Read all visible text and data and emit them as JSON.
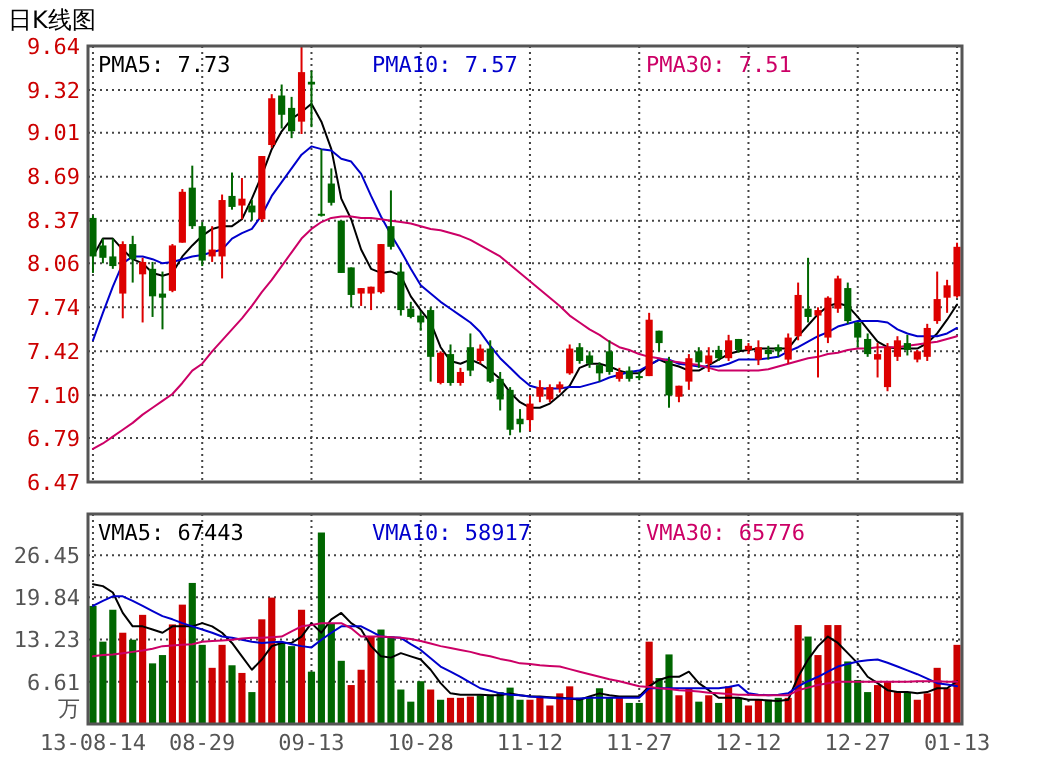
{
  "chart_data": [
    {
      "type": "candlestick",
      "title": "日K线图",
      "categories": [
        null,
        null,
        null,
        null,
        null,
        null,
        null,
        null,
        null,
        null,
        null,
        null,
        null,
        null,
        null,
        null,
        null,
        null,
        null,
        null,
        null,
        null,
        null,
        null,
        null,
        null,
        null,
        null,
        null,
        null,
        null,
        null,
        null,
        null,
        null,
        null,
        null,
        null,
        null,
        null,
        null,
        null,
        null,
        null,
        null,
        null,
        null,
        null,
        null,
        null,
        null,
        null,
        null,
        null,
        null,
        null,
        null,
        null,
        null,
        null,
        null,
        null,
        null,
        null,
        null,
        null,
        null,
        null,
        null,
        null,
        null,
        null,
        null,
        null,
        null,
        null,
        null,
        null,
        null,
        null,
        null,
        null,
        null,
        null,
        null,
        null,
        null,
        null
      ],
      "ohlc": [
        [
          8.39,
          8.41,
          7.99,
          8.11
        ],
        [
          8.19,
          8.24,
          8.06,
          8.1
        ],
        [
          8.11,
          8.24,
          8.02,
          8.04
        ],
        [
          7.84,
          8.22,
          7.66,
          8.2
        ],
        [
          8.2,
          8.26,
          7.92,
          8.09
        ],
        [
          7.98,
          8.1,
          7.63,
          8.07
        ],
        [
          8.02,
          8.07,
          7.67,
          7.82
        ],
        [
          7.84,
          8.0,
          7.58,
          7.81
        ],
        [
          7.86,
          8.2,
          7.85,
          8.19
        ],
        [
          8.21,
          8.6,
          8.21,
          8.58
        ],
        [
          8.61,
          8.77,
          8.31,
          8.33
        ],
        [
          8.33,
          8.36,
          8.04,
          8.08
        ],
        [
          8.11,
          8.33,
          8.07,
          8.16
        ],
        [
          8.11,
          8.56,
          7.95,
          8.52
        ],
        [
          8.55,
          8.72,
          8.45,
          8.47
        ],
        [
          8.48,
          8.68,
          8.38,
          8.53
        ],
        [
          8.48,
          8.52,
          8.37,
          8.43
        ],
        [
          8.38,
          8.84,
          8.36,
          8.84
        ],
        [
          8.92,
          9.29,
          8.9,
          9.26
        ],
        [
          9.28,
          9.36,
          9.04,
          9.14
        ],
        [
          9.19,
          9.27,
          8.97,
          9.02
        ],
        [
          9.09,
          9.64,
          9.0,
          9.45
        ],
        [
          9.38,
          9.46,
          9.05,
          9.36
        ],
        [
          8.42,
          8.89,
          8.4,
          8.41
        ],
        [
          8.64,
          8.75,
          8.48,
          8.5
        ],
        [
          8.37,
          8.37,
          7.99,
          7.99
        ],
        [
          8.03,
          8.03,
          7.74,
          7.83
        ],
        [
          7.84,
          7.88,
          7.75,
          7.88
        ],
        [
          7.84,
          7.89,
          7.72,
          7.89
        ],
        [
          7.85,
          8.2,
          7.84,
          8.2
        ],
        [
          8.33,
          8.59,
          8.16,
          8.18
        ],
        [
          8.0,
          8.06,
          7.68,
          7.72
        ],
        [
          7.73,
          7.78,
          7.66,
          7.67
        ],
        [
          7.68,
          7.71,
          7.57,
          7.63
        ],
        [
          7.72,
          7.74,
          7.2,
          7.38
        ],
        [
          7.19,
          7.42,
          7.18,
          7.41
        ],
        [
          7.4,
          7.47,
          7.17,
          7.19
        ],
        [
          7.19,
          7.3,
          7.17,
          7.27
        ],
        [
          7.45,
          7.55,
          7.24,
          7.28
        ],
        [
          7.35,
          7.47,
          7.33,
          7.44
        ],
        [
          7.44,
          7.5,
          7.19,
          7.2
        ],
        [
          7.22,
          7.27,
          6.99,
          7.07
        ],
        [
          7.14,
          7.16,
          6.81,
          6.85
        ],
        [
          6.93,
          7.0,
          6.83,
          6.89
        ],
        [
          6.92,
          7.1,
          6.84,
          7.04
        ],
        [
          7.09,
          7.21,
          7.05,
          7.16
        ],
        [
          7.07,
          7.18,
          7.05,
          7.16
        ],
        [
          7.15,
          7.2,
          7.12,
          7.18
        ],
        [
          7.26,
          7.47,
          7.25,
          7.44
        ],
        [
          7.45,
          7.48,
          7.33,
          7.35
        ],
        [
          7.39,
          7.42,
          7.3,
          7.33
        ],
        [
          7.32,
          7.34,
          7.2,
          7.26
        ],
        [
          7.42,
          7.5,
          7.25,
          7.27
        ],
        [
          7.22,
          7.3,
          7.2,
          7.27
        ],
        [
          7.28,
          7.31,
          7.2,
          7.22
        ],
        [
          7.24,
          7.27,
          7.21,
          7.23
        ],
        [
          7.24,
          7.7,
          7.24,
          7.65
        ],
        [
          7.57,
          7.57,
          7.42,
          7.48
        ],
        [
          7.35,
          7.38,
          7.01,
          7.1
        ],
        [
          7.09,
          7.17,
          7.05,
          7.17
        ],
        [
          7.2,
          7.4,
          7.14,
          7.37
        ],
        [
          7.42,
          7.45,
          7.3,
          7.34
        ],
        [
          7.33,
          7.45,
          7.27,
          7.39
        ],
        [
          7.43,
          7.46,
          7.35,
          7.37
        ],
        [
          7.37,
          7.54,
          7.35,
          7.5
        ],
        [
          7.51,
          7.51,
          7.41,
          7.43
        ],
        [
          7.43,
          7.48,
          7.4,
          7.46
        ],
        [
          7.36,
          7.5,
          7.32,
          7.45
        ],
        [
          7.43,
          7.46,
          7.36,
          7.4
        ],
        [
          7.45,
          7.47,
          7.38,
          7.42
        ],
        [
          7.36,
          7.55,
          7.33,
          7.52
        ],
        [
          7.53,
          7.92,
          7.5,
          7.83
        ],
        [
          7.73,
          8.1,
          7.63,
          7.67
        ],
        [
          7.68,
          7.74,
          7.23,
          7.72
        ],
        [
          7.52,
          7.82,
          7.48,
          7.81
        ],
        [
          7.73,
          7.97,
          7.7,
          7.95
        ],
        [
          7.88,
          7.92,
          7.62,
          7.64
        ],
        [
          7.63,
          7.63,
          7.45,
          7.52
        ],
        [
          7.51,
          7.55,
          7.38,
          7.4
        ],
        [
          7.36,
          7.48,
          7.23,
          7.4
        ],
        [
          7.16,
          7.48,
          7.13,
          7.45
        ],
        [
          7.38,
          7.53,
          7.35,
          7.5
        ],
        [
          7.48,
          7.54,
          7.39,
          7.43
        ],
        [
          7.36,
          7.43,
          7.34,
          7.42
        ],
        [
          7.38,
          7.62,
          7.35,
          7.59
        ],
        [
          7.64,
          8.0,
          7.62,
          7.8
        ],
        [
          7.81,
          7.94,
          7.7,
          7.9
        ],
        [
          7.82,
          8.21,
          7.81,
          8.18
        ]
      ],
      "series": [
        {
          "name": "PMA5: 7.73",
          "type": "line",
          "color": "#000000",
          "values": [
            8.11,
            8.24,
            8.24,
            8.16,
            8.09,
            8.06,
            7.99,
            7.97,
            7.99,
            8.11,
            8.19,
            8.26,
            8.31,
            8.33,
            8.33,
            8.38,
            8.53,
            8.7,
            8.89,
            9.02,
            9.11,
            9.16,
            9.22,
            9.09,
            8.89,
            8.53,
            8.38,
            8.16,
            8.02,
            7.99,
            8.0,
            7.97,
            7.82,
            7.72,
            7.63,
            7.45,
            7.35,
            7.33,
            7.36,
            7.33,
            7.28,
            7.22,
            7.12,
            7.05,
            7.01,
            7.01,
            7.04,
            7.1,
            7.17,
            7.3,
            7.33,
            7.33,
            7.31,
            7.28,
            7.26,
            7.26,
            7.32,
            7.36,
            7.33,
            7.31,
            7.28,
            7.28,
            7.32,
            7.36,
            7.4,
            7.42,
            7.43,
            7.44,
            7.44,
            7.44,
            7.44,
            7.53,
            7.61,
            7.69,
            7.75,
            7.77,
            7.75,
            7.67,
            7.58,
            7.49,
            7.45,
            7.44,
            7.44,
            7.44,
            7.48,
            7.55,
            7.65,
            7.76
          ]
        },
        {
          "name": "PMA10: 7.57",
          "type": "line",
          "color": "#0000cc",
          "values": [
            7.5,
            7.7,
            7.89,
            8.06,
            8.11,
            8.11,
            8.09,
            8.06,
            8.07,
            8.09,
            8.11,
            8.12,
            8.14,
            8.16,
            8.24,
            8.28,
            8.31,
            8.41,
            8.55,
            8.65,
            8.75,
            8.85,
            8.91,
            8.89,
            8.88,
            8.82,
            8.8,
            8.71,
            8.55,
            8.4,
            8.27,
            8.15,
            8.02,
            7.9,
            7.84,
            7.78,
            7.73,
            7.68,
            7.63,
            7.56,
            7.46,
            7.37,
            7.3,
            7.23,
            7.17,
            7.15,
            7.15,
            7.15,
            7.16,
            7.16,
            7.18,
            7.2,
            7.23,
            7.25,
            7.27,
            7.28,
            7.32,
            7.36,
            7.36,
            7.33,
            7.32,
            7.31,
            7.31,
            7.31,
            7.33,
            7.36,
            7.36,
            7.36,
            7.37,
            7.38,
            7.42,
            7.45,
            7.49,
            7.53,
            7.56,
            7.6,
            7.62,
            7.64,
            7.64,
            7.64,
            7.63,
            7.58,
            7.55,
            7.53,
            7.53,
            7.53,
            7.55,
            7.59
          ]
        },
        {
          "name": "PMA30: 7.51",
          "type": "line",
          "color": "#cc0066",
          "values": [
            6.71,
            6.75,
            6.8,
            6.85,
            6.9,
            6.96,
            7.01,
            7.06,
            7.11,
            7.19,
            7.28,
            7.33,
            7.42,
            7.5,
            7.58,
            7.66,
            7.75,
            7.85,
            7.94,
            8.04,
            8.14,
            8.24,
            8.31,
            8.36,
            8.39,
            8.4,
            8.4,
            8.39,
            8.39,
            8.38,
            8.37,
            8.36,
            8.35,
            8.33,
            8.31,
            8.3,
            8.28,
            8.26,
            8.23,
            8.19,
            8.15,
            8.11,
            8.05,
            7.99,
            7.93,
            7.87,
            7.81,
            7.75,
            7.68,
            7.63,
            7.58,
            7.54,
            7.49,
            7.45,
            7.43,
            7.4,
            7.38,
            7.37,
            7.35,
            7.34,
            7.33,
            7.32,
            7.3,
            7.28,
            7.28,
            7.28,
            7.28,
            7.28,
            7.29,
            7.31,
            7.33,
            7.35,
            7.37,
            7.38,
            7.4,
            7.41,
            7.43,
            7.44,
            7.44,
            7.45,
            7.45,
            7.45,
            7.46,
            7.47,
            7.48,
            7.49,
            7.51,
            7.53
          ]
        }
      ],
      "ylim": [
        6.47,
        9.64
      ],
      "yticks": [
        6.47,
        6.79,
        {
          "value": 7.1,
          "label": "7.10"
        },
        7.42,
        7.74,
        8.06,
        8.37,
        8.69,
        9.01,
        9.32,
        9.64
      ],
      "grid": true,
      "legend": "top",
      "tick_labels": "y"
    },
    {
      "type": "bar",
      "ylabel": "万",
      "categories": [
        "13-08-14",
        null,
        null,
        null,
        null,
        null,
        null,
        null,
        null,
        null,
        null,
        "08-29",
        null,
        null,
        null,
        null,
        null,
        null,
        null,
        null,
        null,
        null,
        "09-13",
        null,
        null,
        null,
        null,
        null,
        null,
        null,
        null,
        null,
        null,
        "10-28",
        null,
        null,
        null,
        null,
        null,
        null,
        null,
        null,
        null,
        null,
        "11-12",
        null,
        null,
        null,
        null,
        null,
        null,
        null,
        null,
        null,
        null,
        "11-27",
        null,
        null,
        null,
        null,
        null,
        null,
        null,
        null,
        null,
        null,
        "12-12",
        null,
        null,
        null,
        null,
        null,
        null,
        null,
        null,
        null,
        null,
        "12-27",
        null,
        null,
        null,
        null,
        null,
        null,
        null,
        null,
        null,
        "01-13"
      ],
      "series": [
        {
          "values": [
            18.5,
            12.9,
            17.9,
            14.3,
            13.2,
            17.1,
            9.5,
            10.8,
            15.6,
            18.7,
            22.1,
            12.4,
            8.8,
            12.4,
            9.2,
            8.0,
            5.0,
            16.4,
            19.8,
            12.7,
            12.2,
            17.9,
            8.2,
            30.0,
            15.8,
            9.9,
            6.1,
            8.5,
            13.7,
            14.8,
            13.7,
            5.4,
            3.5,
            6.7,
            5.4,
            3.8,
            4.1,
            4.1,
            4.3,
            4.5,
            4.5,
            5.0,
            5.7,
            3.8,
            3.8,
            4.1,
            2.9,
            4.8,
            5.9,
            4.1,
            4.1,
            5.6,
            4.1,
            4.1,
            3.3,
            3.3,
            12.9,
            7.2,
            10.9,
            4.5,
            5.6,
            3.5,
            4.5,
            3.3,
            5.9,
            4.1,
            2.9,
            3.8,
            3.8,
            4.1,
            4.1,
            15.5,
            13.7,
            10.8,
            15.5,
            15.5,
            9.8,
            6.9,
            5.0,
            6.1,
            6.6,
            5.0,
            5.0,
            3.8,
            4.8,
            8.8,
            5.6,
            12.4
          ],
          "colors": [
            "#006600",
            "#006600",
            "#006600",
            "#cc0000",
            "#006600",
            "#cc0000",
            "#006600",
            "#006600",
            "#cc0000",
            "#cc0000",
            "#006600",
            "#006600",
            "#cc0000",
            "#cc0000",
            "#006600",
            "#cc0000",
            "#006600",
            "#cc0000",
            "#cc0000",
            "#006600",
            "#006600",
            "#cc0000",
            "#006600",
            "#006600",
            "#006600",
            "#006600",
            "#cc0000",
            "#cc0000",
            "#cc0000",
            "#006600",
            "#006600",
            "#006600",
            "#006600",
            "#006600",
            "#cc0000",
            "#006600",
            "#cc0000",
            "#cc0000",
            "#cc0000",
            "#006600",
            "#006600",
            "#006600",
            "#006600",
            "#006600",
            "#cc0000",
            "#cc0000",
            "#cc0000",
            "#cc0000",
            "#cc0000",
            "#006600",
            "#006600",
            "#006600",
            "#006600",
            "#cc0000",
            "#006600",
            "#006600",
            "#cc0000",
            "#006600",
            "#006600",
            "#cc0000",
            "#cc0000",
            "#006600",
            "#cc0000",
            "#006600",
            "#cc0000",
            "#006600",
            "#cc0000",
            "#cc0000",
            "#006600",
            "#006600",
            "#cc0000",
            "#cc0000",
            "#006600",
            "#cc0000",
            "#cc0000",
            "#cc0000",
            "#006600",
            "#006600",
            "#006600",
            "#cc0000",
            "#cc0000",
            "#cc0000",
            "#006600",
            "#cc0000",
            "#cc0000",
            "#cc0000",
            "#cc0000",
            "#cc0000"
          ]
        },
        {
          "name": "VMA5: 67443",
          "type": "line",
          "color": "#000000",
          "values": [
            21.9,
            21.6,
            20.6,
            17.4,
            15.3,
            15.3,
            14.8,
            14.3,
            15.3,
            15.3,
            15.3,
            15.8,
            15.3,
            14.3,
            12.7,
            10.6,
            8.5,
            10.1,
            12.2,
            12.7,
            12.7,
            13.7,
            15.8,
            14.3,
            16.4,
            17.4,
            15.8,
            14.8,
            12.2,
            10.6,
            10.4,
            11.1,
            10.6,
            10.1,
            8.5,
            6.4,
            4.8,
            4.6,
            4.6,
            4.6,
            4.5,
            4.5,
            4.8,
            4.5,
            4.3,
            4.3,
            4.2,
            4.1,
            4.0,
            3.8,
            4.3,
            4.8,
            4.5,
            4.3,
            4.3,
            4.3,
            5.9,
            6.9,
            7.4,
            7.4,
            8.2,
            6.4,
            5.3,
            4.1,
            4.1,
            4.1,
            3.8,
            3.8,
            3.7,
            3.6,
            3.8,
            7.4,
            10.1,
            12.2,
            13.7,
            12.7,
            11.1,
            9.5,
            7.4,
            6.4,
            5.3,
            5.0,
            5.0,
            4.8,
            5.0,
            5.6,
            5.6,
            6.7
          ]
        },
        {
          "name": "VMA10: 58917",
          "type": "line",
          "color": "#0000cc",
          "values": [
            18.5,
            19.3,
            20.0,
            20.0,
            19.3,
            18.5,
            17.7,
            16.9,
            16.4,
            15.8,
            15.3,
            14.8,
            14.3,
            13.7,
            13.5,
            13.2,
            12.9,
            12.7,
            12.8,
            12.9,
            12.5,
            12.2,
            12.0,
            13.2,
            14.3,
            15.3,
            15.3,
            15.3,
            14.5,
            13.7,
            13.6,
            13.5,
            12.5,
            11.6,
            10.3,
            9.0,
            8.2,
            7.4,
            6.5,
            5.6,
            5.2,
            4.8,
            4.6,
            4.5,
            4.3,
            4.2,
            4.1,
            4.0,
            4.0,
            4.0,
            4.1,
            4.1,
            4.1,
            4.1,
            4.1,
            4.1,
            5.6,
            5.6,
            5.6,
            5.6,
            5.6,
            5.6,
            5.6,
            5.6,
            5.8,
            6.1,
            4.8,
            4.6,
            4.5,
            4.6,
            4.8,
            5.9,
            6.7,
            7.4,
            8.2,
            9.0,
            9.4,
            9.8,
            10.0,
            10.1,
            9.6,
            9.0,
            8.4,
            7.8,
            7.1,
            6.4,
            6.2,
            5.9
          ]
        },
        {
          "name": "VMA30: 65776",
          "type": "line",
          "color": "#cc0066",
          "values": [
            10.6,
            10.8,
            10.9,
            11.1,
            11.3,
            11.5,
            11.8,
            12.2,
            12.3,
            12.4,
            12.5,
            12.9,
            13.0,
            13.1,
            13.2,
            13.4,
            13.5,
            13.5,
            13.6,
            13.7,
            14.5,
            15.3,
            15.5,
            15.8,
            15.8,
            15.8,
            15.0,
            13.7,
            13.7,
            13.7,
            13.6,
            13.5,
            13.3,
            13.0,
            12.6,
            12.2,
            11.9,
            11.6,
            11.3,
            10.9,
            10.6,
            10.2,
            9.9,
            9.5,
            9.4,
            9.2,
            9.1,
            9.0,
            8.6,
            8.2,
            7.8,
            7.4,
            7.0,
            6.7,
            6.3,
            5.9,
            5.8,
            5.6,
            5.5,
            5.3,
            5.2,
            5.1,
            4.9,
            4.8,
            4.7,
            4.6,
            4.6,
            4.5,
            4.5,
            4.5,
            4.5,
            5.3,
            5.7,
            6.1,
            6.4,
            6.6,
            6.6,
            6.6,
            6.6,
            6.6,
            6.6,
            6.6,
            6.6,
            6.7,
            6.7,
            6.7,
            6.6,
            6.6
          ]
        }
      ],
      "ylim": [
        0,
        32.9
      ],
      "yticks": [
        6.61,
        13.23,
        19.84,
        26.45
      ],
      "grid": true,
      "legend": "top"
    }
  ]
}
